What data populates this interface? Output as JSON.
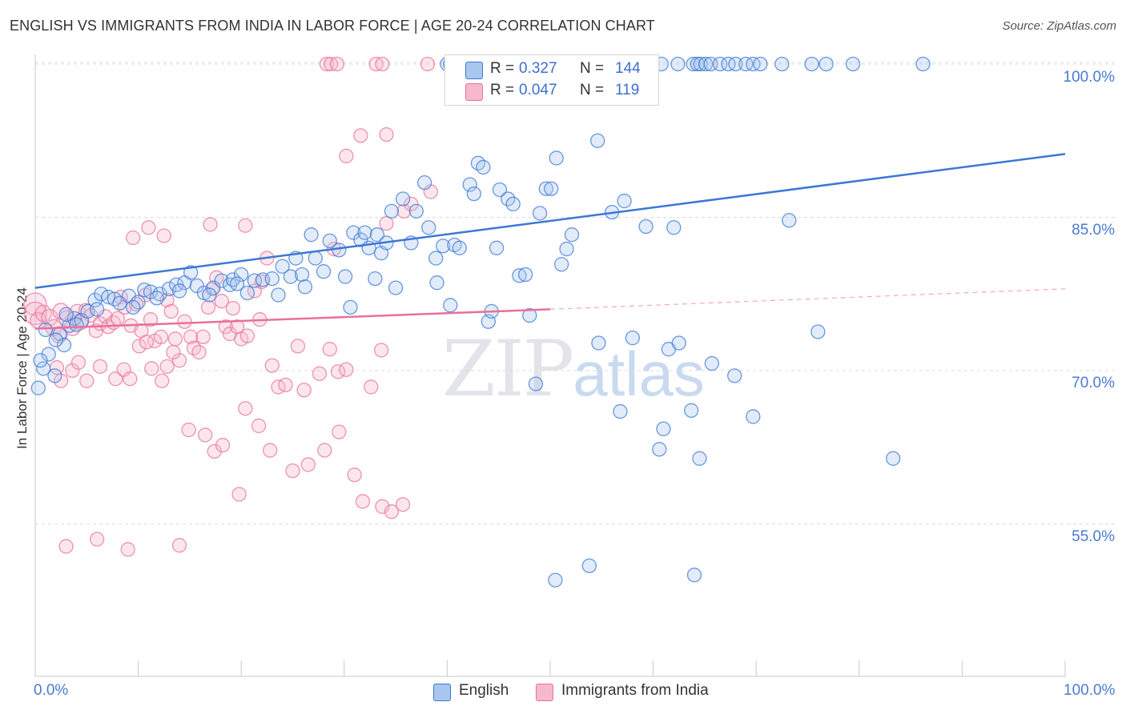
{
  "title": "ENGLISH VS IMMIGRANTS FROM INDIA IN LABOR FORCE | AGE 20-24 CORRELATION CHART",
  "source": "Source: ZipAtlas.com",
  "watermark": {
    "zip": "ZIP",
    "atlas": "atlas"
  },
  "colors": {
    "english": "#3b78d4",
    "india": "#e8709a",
    "english_fill": "#a9c6ef",
    "india_fill": "#f6b8cc",
    "axis_text": "#4a7bd0"
  },
  "legend": {
    "rows": [
      {
        "r_label": "R =",
        "r_value": "0.327",
        "n_label": "N =",
        "n_value": "144"
      },
      {
        "r_label": "R =",
        "r_value": "0.047",
        "n_label": "N =",
        "n_value": "119"
      }
    ],
    "bottom": [
      "English",
      "Immigrants from India"
    ]
  },
  "chart_data": {
    "type": "scatter",
    "title": "ENGLISH VS IMMIGRANTS FROM INDIA IN LABOR FORCE | AGE 20-24 CORRELATION CHART",
    "xlabel": "",
    "ylabel": "In Labor Force | Age 20-24",
    "xlim": [
      0,
      100
    ],
    "ylim": [
      40,
      103
    ],
    "x_tick_labels": [
      "0.0%",
      "100.0%"
    ],
    "y_ticks": [
      55,
      70,
      85,
      100
    ],
    "y_tick_labels": [
      "55.0%",
      "70.0%",
      "85.0%",
      "100.0%"
    ],
    "grid": true,
    "series": [
      {
        "name": "English",
        "trend": {
          "x": [
            0,
            100
          ],
          "y": [
            78.1,
            91.2
          ]
        },
        "points": [
          [
            0.3,
            68.3
          ],
          [
            0.8,
            70.2
          ],
          [
            1.3,
            71.6
          ],
          [
            1.9,
            69.5
          ],
          [
            2.4,
            73.6
          ],
          [
            2.8,
            72.5
          ],
          [
            3.3,
            74.4
          ],
          [
            3.8,
            75.1
          ],
          [
            4.5,
            74.9
          ],
          [
            5.1,
            75.8
          ],
          [
            5.8,
            76.9
          ],
          [
            6.4,
            77.5
          ],
          [
            7.1,
            77.2
          ],
          [
            7.7,
            77.0
          ],
          [
            8.2,
            76.6
          ],
          [
            9.1,
            77.3
          ],
          [
            10.0,
            76.7
          ],
          [
            10.6,
            77.9
          ],
          [
            11.2,
            77.7
          ],
          [
            12.1,
            77.5
          ],
          [
            13.0,
            78.0
          ],
          [
            13.7,
            78.4
          ],
          [
            14.5,
            78.6
          ],
          [
            15.1,
            79.6
          ],
          [
            15.7,
            78.3
          ],
          [
            16.4,
            77.6
          ],
          [
            17.3,
            78.1
          ],
          [
            18.1,
            78.8
          ],
          [
            18.9,
            78.4
          ],
          [
            19.2,
            78.9
          ],
          [
            20.0,
            79.4
          ],
          [
            20.6,
            77.6
          ],
          [
            21.3,
            78.8
          ],
          [
            22.1,
            78.9
          ],
          [
            23.0,
            79.0
          ],
          [
            23.6,
            77.4
          ],
          [
            24.0,
            80.2
          ],
          [
            24.8,
            79.2
          ],
          [
            25.3,
            81.0
          ],
          [
            25.9,
            79.4
          ],
          [
            26.2,
            78.2
          ],
          [
            26.8,
            83.3
          ],
          [
            27.2,
            81.0
          ],
          [
            28.0,
            79.7
          ],
          [
            28.6,
            82.7
          ],
          [
            29.5,
            81.8
          ],
          [
            30.1,
            79.2
          ],
          [
            30.6,
            76.2
          ],
          [
            30.9,
            83.5
          ],
          [
            31.6,
            82.8
          ],
          [
            32.0,
            83.5
          ],
          [
            32.4,
            82.0
          ],
          [
            33.0,
            79.0
          ],
          [
            33.2,
            83.3
          ],
          [
            33.6,
            81.5
          ],
          [
            34.1,
            82.5
          ],
          [
            34.6,
            85.6
          ],
          [
            35.0,
            78.1
          ],
          [
            35.7,
            86.8
          ],
          [
            36.5,
            82.5
          ],
          [
            37.0,
            85.6
          ],
          [
            37.8,
            88.4
          ],
          [
            38.2,
            84.0
          ],
          [
            38.9,
            81.0
          ],
          [
            39.0,
            78.6
          ],
          [
            39.6,
            82.2
          ],
          [
            40.3,
            76.4
          ],
          [
            40.7,
            82.3
          ],
          [
            41.2,
            82.0
          ],
          [
            42.2,
            88.2
          ],
          [
            42.6,
            87.3
          ],
          [
            43.0,
            90.3
          ],
          [
            43.5,
            89.9
          ],
          [
            44.0,
            74.8
          ],
          [
            44.3,
            75.8
          ],
          [
            44.8,
            82.0
          ],
          [
            45.1,
            87.7
          ],
          [
            45.9,
            86.8
          ],
          [
            46.4,
            86.3
          ],
          [
            47.0,
            79.3
          ],
          [
            47.6,
            79.4
          ],
          [
            48.0,
            75.4
          ],
          [
            48.6,
            68.7
          ],
          [
            49.0,
            85.4
          ],
          [
            49.6,
            87.8
          ],
          [
            50.1,
            87.8
          ],
          [
            50.6,
            90.8
          ],
          [
            51.1,
            80.4
          ],
          [
            51.6,
            81.9
          ],
          [
            52.1,
            83.3
          ],
          [
            54.6,
            92.5
          ],
          [
            54.7,
            72.7
          ],
          [
            56.0,
            85.5
          ],
          [
            56.8,
            66.0
          ],
          [
            57.2,
            86.6
          ],
          [
            58.0,
            73.2
          ],
          [
            59.3,
            84.1
          ],
          [
            60.6,
            62.3
          ],
          [
            61.0,
            64.3
          ],
          [
            61.5,
            72.1
          ],
          [
            62.0,
            84.0
          ],
          [
            62.5,
            72.7
          ],
          [
            63.7,
            66.1
          ],
          [
            64.5,
            61.4
          ],
          [
            65.7,
            70.7
          ],
          [
            67.9,
            69.5
          ],
          [
            69.7,
            65.5
          ],
          [
            73.2,
            84.7
          ],
          [
            76.0,
            73.8
          ],
          [
            83.3,
            61.4
          ],
          [
            50.5,
            49.5
          ],
          [
            53.8,
            50.9
          ],
          [
            64.0,
            50.0
          ],
          [
            40.0,
            100.0
          ],
          [
            40.3,
            100.0
          ],
          [
            49.3,
            100.0
          ],
          [
            49.8,
            100.0
          ],
          [
            50.8,
            100.0
          ],
          [
            52.6,
            100.0
          ],
          [
            53.3,
            100.0
          ],
          [
            54.6,
            100.0
          ],
          [
            55.1,
            100.0
          ],
          [
            55.8,
            100.0
          ],
          [
            57.2,
            100.0
          ],
          [
            58.2,
            100.0
          ],
          [
            60.8,
            100.0
          ],
          [
            62.4,
            100.0
          ],
          [
            63.9,
            100.0
          ],
          [
            64.3,
            100.0
          ],
          [
            64.6,
            100.0
          ],
          [
            65.1,
            100.0
          ],
          [
            65.6,
            100.0
          ],
          [
            66.5,
            100.0
          ],
          [
            67.3,
            100.0
          ],
          [
            68.0,
            100.0
          ],
          [
            69.0,
            100.0
          ],
          [
            69.7,
            100.0
          ],
          [
            70.4,
            100.0
          ],
          [
            72.5,
            100.0
          ],
          [
            75.4,
            100.0
          ],
          [
            76.8,
            100.0
          ],
          [
            79.4,
            100.0
          ],
          [
            86.2,
            100.0
          ],
          [
            0.5,
            71.0
          ],
          [
            1.0,
            74.0
          ],
          [
            2.0,
            73.0
          ],
          [
            3.0,
            75.5
          ],
          [
            4.0,
            74.5
          ],
          [
            6.0,
            76.0
          ],
          [
            9.5,
            76.2
          ],
          [
            11.8,
            77.1
          ],
          [
            14.0,
            77.8
          ],
          [
            16.9,
            77.4
          ],
          [
            19.6,
            78.5
          ]
        ]
      },
      {
        "name": "Immigrants from India",
        "trend": {
          "x": [
            0,
            50
          ],
          "y": [
            74.1,
            76.0
          ]
        },
        "trend_dashed": {
          "x": [
            50,
            100
          ],
          "y": [
            76.0,
            78.0
          ]
        },
        "points": [
          [
            0.0,
            76.5
          ],
          [
            0.0,
            75.6
          ],
          [
            0.3,
            74.9
          ],
          [
            0.8,
            75.6
          ],
          [
            1.4,
            75.2
          ],
          [
            1.8,
            74.2
          ],
          [
            2.3,
            73.5
          ],
          [
            2.5,
            75.8
          ],
          [
            3.1,
            75.1
          ],
          [
            3.6,
            74.2
          ],
          [
            4.1,
            75.7
          ],
          [
            4.4,
            74.8
          ],
          [
            4.9,
            75.9
          ],
          [
            5.4,
            75.4
          ],
          [
            5.9,
            73.9
          ],
          [
            6.3,
            74.6
          ],
          [
            6.8,
            75.3
          ],
          [
            7.1,
            74.3
          ],
          [
            7.6,
            74.7
          ],
          [
            8.0,
            75.1
          ],
          [
            8.3,
            77.2
          ],
          [
            8.7,
            76.2
          ],
          [
            9.3,
            74.4
          ],
          [
            9.8,
            76.5
          ],
          [
            10.3,
            73.9
          ],
          [
            10.7,
            77.4
          ],
          [
            11.2,
            75.0
          ],
          [
            11.6,
            72.9
          ],
          [
            12.2,
            73.3
          ],
          [
            12.8,
            76.9
          ],
          [
            13.2,
            75.8
          ],
          [
            13.6,
            73.1
          ],
          [
            14.0,
            71.0
          ],
          [
            14.5,
            74.8
          ],
          [
            15.1,
            73.3
          ],
          [
            15.4,
            72.2
          ],
          [
            15.9,
            71.8
          ],
          [
            16.3,
            73.3
          ],
          [
            16.8,
            76.2
          ],
          [
            17.2,
            78.0
          ],
          [
            17.6,
            79.1
          ],
          [
            18.1,
            76.8
          ],
          [
            18.5,
            74.3
          ],
          [
            18.9,
            73.6
          ],
          [
            19.2,
            76.1
          ],
          [
            19.6,
            74.3
          ],
          [
            20.0,
            73.1
          ],
          [
            20.6,
            73.4
          ],
          [
            21.3,
            77.8
          ],
          [
            21.8,
            75.0
          ],
          [
            22.0,
            78.7
          ],
          [
            22.5,
            81.0
          ],
          [
            23.0,
            70.5
          ],
          [
            23.6,
            68.4
          ],
          [
            24.3,
            68.6
          ],
          [
            25.5,
            72.4
          ],
          [
            26.1,
            68.1
          ],
          [
            27.6,
            69.7
          ],
          [
            28.6,
            72.1
          ],
          [
            29.0,
            81.9
          ],
          [
            29.4,
            69.9
          ],
          [
            30.2,
            70.1
          ],
          [
            32.6,
            68.4
          ],
          [
            33.6,
            72.0
          ],
          [
            34.1,
            84.4
          ],
          [
            35.8,
            85.6
          ],
          [
            36.5,
            86.3
          ],
          [
            38.4,
            87.5
          ],
          [
            2.1,
            70.3
          ],
          [
            2.5,
            69.0
          ],
          [
            3.6,
            70.0
          ],
          [
            4.2,
            70.8
          ],
          [
            5.0,
            69.0
          ],
          [
            6.3,
            70.4
          ],
          [
            7.8,
            69.2
          ],
          [
            8.6,
            70.1
          ],
          [
            9.2,
            69.2
          ],
          [
            10.1,
            72.4
          ],
          [
            10.8,
            72.8
          ],
          [
            11.3,
            70.2
          ],
          [
            12.3,
            69.0
          ],
          [
            12.8,
            70.4
          ],
          [
            13.4,
            71.8
          ],
          [
            14.9,
            64.2
          ],
          [
            16.5,
            63.7
          ],
          [
            17.4,
            62.1
          ],
          [
            18.2,
            62.7
          ],
          [
            19.8,
            57.9
          ],
          [
            20.4,
            66.3
          ],
          [
            21.7,
            64.6
          ],
          [
            22.8,
            62.2
          ],
          [
            25.0,
            60.2
          ],
          [
            26.5,
            60.8
          ],
          [
            28.1,
            62.2
          ],
          [
            29.5,
            64.0
          ],
          [
            31.0,
            59.8
          ],
          [
            31.8,
            57.2
          ],
          [
            33.7,
            56.7
          ],
          [
            34.6,
            56.2
          ],
          [
            35.7,
            56.9
          ],
          [
            30.2,
            91.0
          ],
          [
            34.1,
            93.1
          ],
          [
            31.6,
            93.0
          ],
          [
            9.5,
            83.0
          ],
          [
            11.0,
            84.0
          ],
          [
            12.5,
            83.2
          ],
          [
            17.0,
            84.3
          ],
          [
            20.4,
            84.2
          ],
          [
            28.3,
            100.0
          ],
          [
            28.7,
            100.0
          ],
          [
            29.3,
            100.0
          ],
          [
            33.1,
            100.0
          ],
          [
            33.7,
            100.0
          ],
          [
            38.1,
            100.0
          ],
          [
            43.7,
            100.0
          ],
          [
            3.0,
            52.8
          ],
          [
            6.0,
            53.5
          ],
          [
            9.0,
            52.5
          ],
          [
            14.0,
            52.9
          ]
        ]
      }
    ]
  }
}
